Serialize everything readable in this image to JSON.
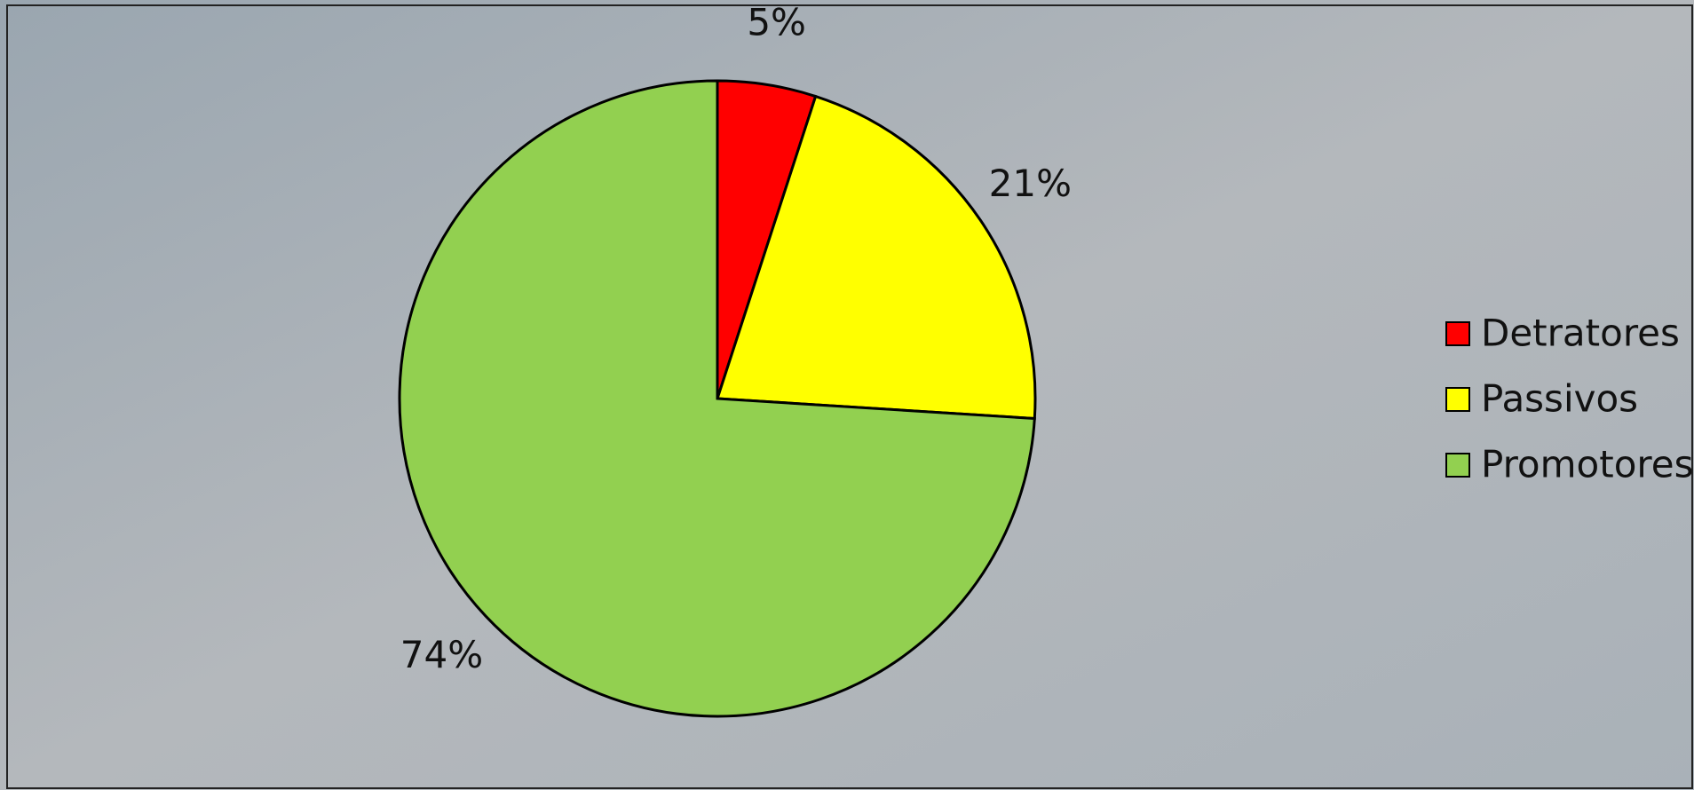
{
  "chart_data": {
    "type": "pie",
    "categories": [
      "Detratores",
      "Passivos",
      "Promotores"
    ],
    "values": [
      5,
      21,
      74
    ],
    "value_labels": [
      "5%",
      "21%",
      "74%"
    ],
    "colors": [
      "#ff0000",
      "#ffff00",
      "#92d050"
    ],
    "legend": "right"
  }
}
